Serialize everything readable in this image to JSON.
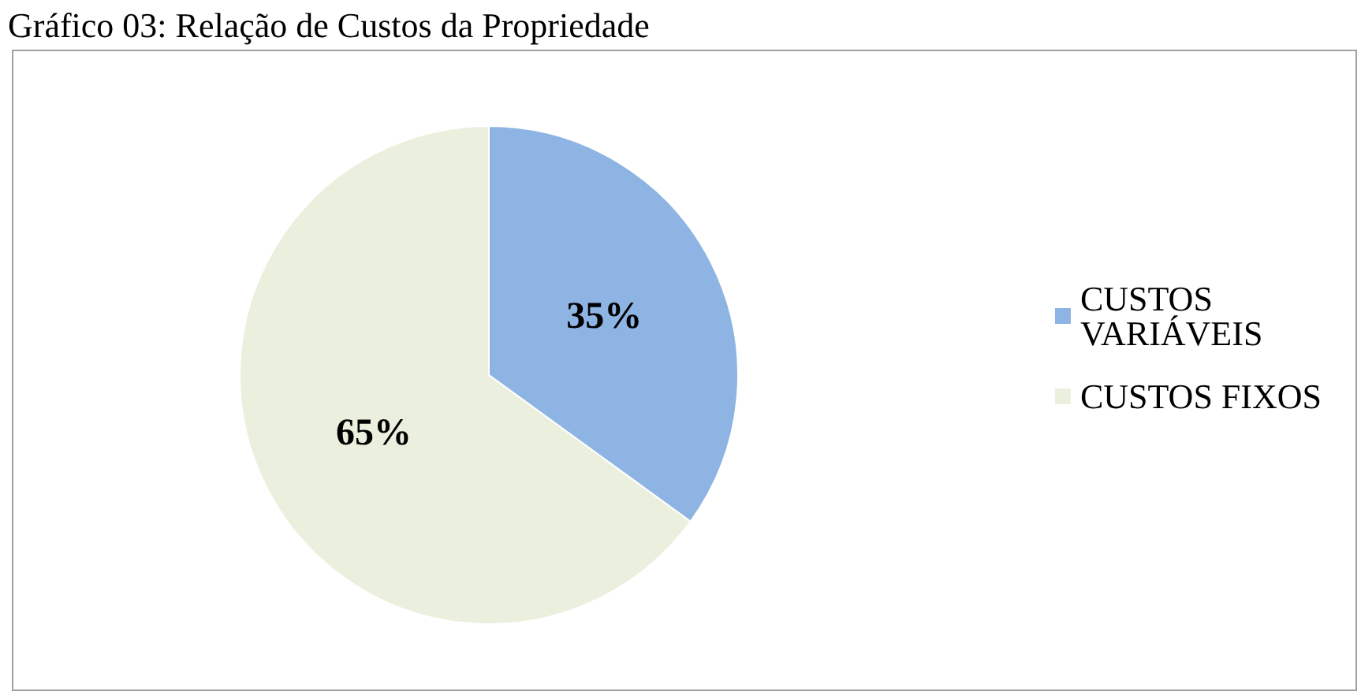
{
  "chart_data": {
    "type": "pie",
    "title": "Gráfico 03: Relação de Custos da Propriedade",
    "categories": [
      "CUSTOS VARIÁVEIS",
      "CUSTOS FIXOS"
    ],
    "values": [
      35,
      65
    ],
    "colors": [
      "#8eb4e3",
      "#ebf0de"
    ],
    "value_labels": [
      "35%",
      "65%"
    ],
    "legend": "right"
  }
}
